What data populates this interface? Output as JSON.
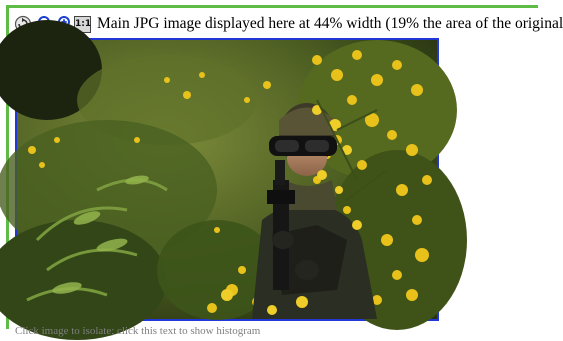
{
  "toolbar": {
    "icons": [
      "rotate-icon",
      "zoom-out-icon",
      "zoom-in-icon"
    ],
    "one_to_one_label": "1:1",
    "caption": "Main JPG image displayed here at 44% width (19% the area of the original"
  },
  "image": {
    "alt": "Soldier in camouflage with goggles and rifle among yellow gorse bushes"
  },
  "hint": "Click image to isolate; click this text to show histogram",
  "colors": {
    "frame_accent": "#5dbb46",
    "image_border": "#2238d6",
    "hint_text": "#7f7f7f"
  }
}
